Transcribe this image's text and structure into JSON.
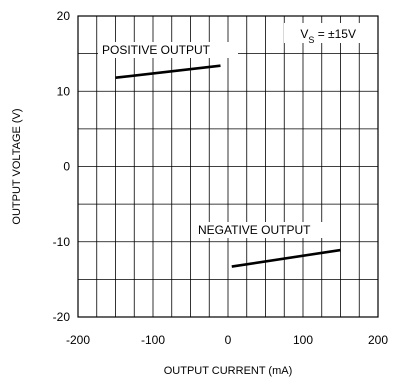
{
  "chart_data": {
    "type": "line",
    "xlabel": "OUTPUT CURRENT (mA)",
    "ylabel": "OUTPUT VOLTAGE (V)",
    "xlim": [
      -200,
      200
    ],
    "ylim": [
      -20,
      20
    ],
    "xticks": [
      -200,
      -100,
      0,
      100,
      200
    ],
    "yticks": [
      -20,
      -10,
      0,
      10,
      20
    ],
    "x_grid_step": 25,
    "y_grid_step": 5,
    "grid": true,
    "annotation": {
      "prefix": "V",
      "subscript": "S",
      "suffix": " = ±15V"
    },
    "series": [
      {
        "name": "POSITIVE OUTPUT",
        "x": [
          -150,
          -10
        ],
        "y": [
          11.8,
          13.4
        ]
      },
      {
        "name": "NEGATIVE OUTPUT",
        "x": [
          5,
          150
        ],
        "y": [
          -13.3,
          -11.1
        ]
      }
    ]
  }
}
